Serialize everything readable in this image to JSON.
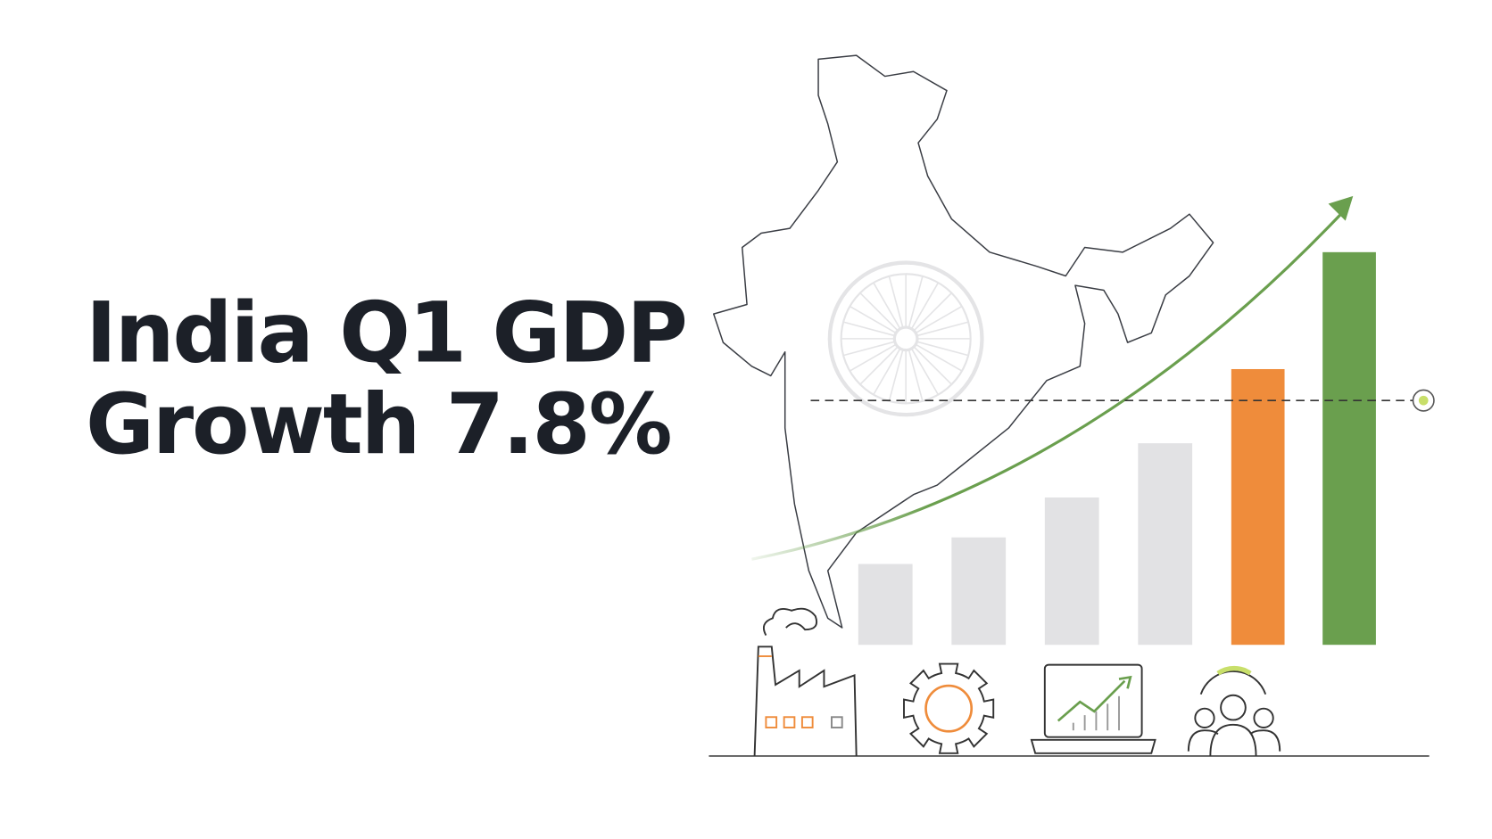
{
  "header": {
    "title_lines": [
      "India Q1 GDP",
      "Growth 7.8%"
    ]
  }
}
